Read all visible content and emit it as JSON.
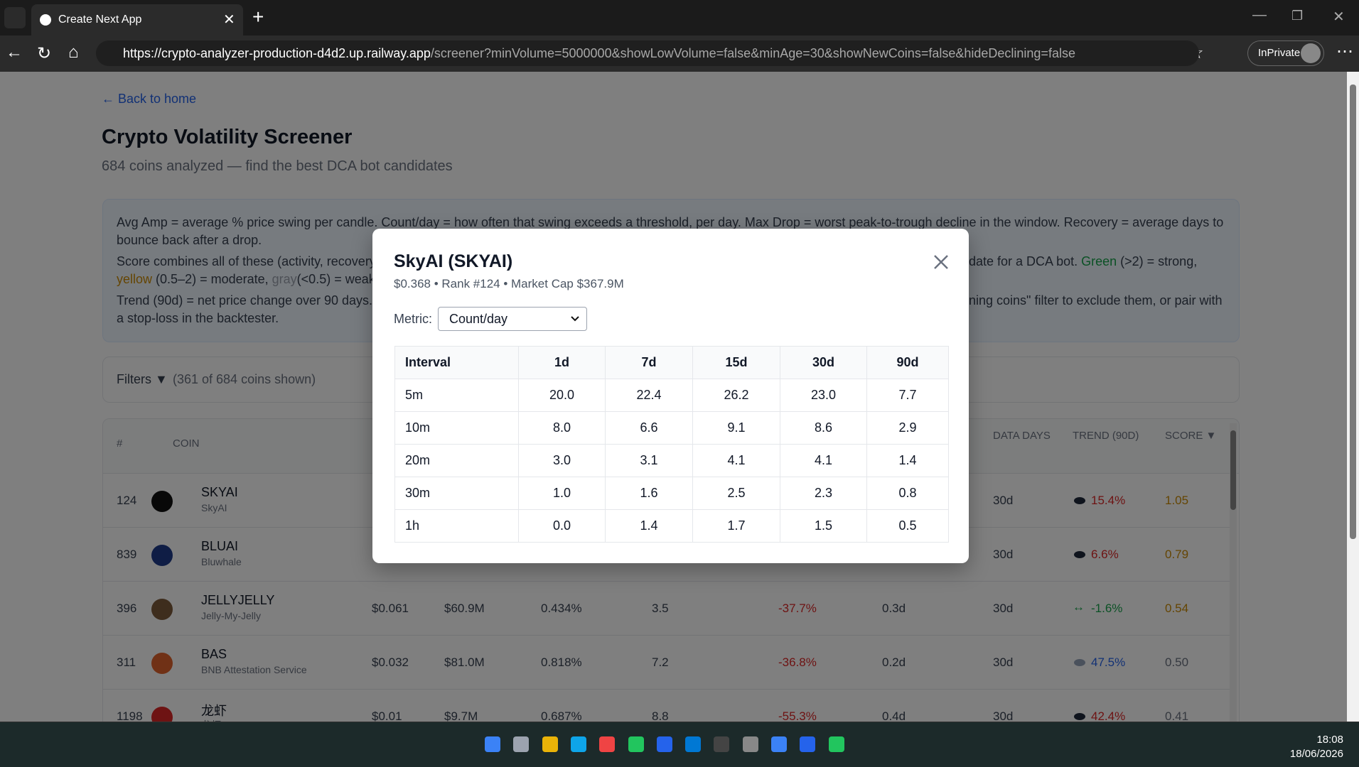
{
  "browser": {
    "tab_title": "Create Next App",
    "url_host": "https://crypto-analyzer-production-d4d2.up.railway.app",
    "url_path": "/screener?minVolume=5000000&showLowVolume=false&minAge=30&showNewCoins=false&hideDeclining=false",
    "profile": "InPrivate"
  },
  "page": {
    "back_link": "← Back to home",
    "title": "Crypto Volatility Screener",
    "subtitle": "684 coins analyzed — find the best DCA bot candidates",
    "info": {
      "p1": "Avg Amp = average % price swing per candle. Count/day = how often that swing exceeds a threshold, per day. Max Drop = worst peak-to-trough decline in the window. Recovery = average days to",
      "p1b": "bounce back after a drop.",
      "p2a": "Score combines all of these (activity, recovery",
      "p2b": "date for a DCA bot.",
      "p2_green": "Green",
      "p2c": "(>2) = strong,",
      "p2_yellow": "yellow",
      "p2d": "(0.5–2) = moderate,",
      "p2_gray": "gray",
      "p2e": "(<0.5) = weak.",
      "p3a": "Trend (90d) = net price change over 90 days.",
      "p3b": "lining coins\" filter to exclude them, or pair with",
      "p3c": "a stop-loss in the backtester."
    },
    "filters": {
      "label": "Filters ▼",
      "count": "(361 of 684 coins shown)"
    },
    "table": {
      "headers": {
        "rank": "#",
        "coin": "COIN",
        "data_days": "DATA DAYS",
        "trend": "TREND (90D)",
        "score": "SCORE ▼"
      },
      "rows": [
        {
          "rank": "124",
          "symbol": "SKYAI",
          "name": "SkyAI",
          "data_days": "30d",
          "trend": "15.4%",
          "trend_color": "#dc2626",
          "score": "1.05",
          "score_color": "#ca8a04"
        },
        {
          "rank": "839",
          "symbol": "BLUAI",
          "name": "Bluwhale",
          "data_days": "30d",
          "trend": "6.6%",
          "trend_color": "#dc2626",
          "score": "0.79",
          "score_color": "#ca8a04"
        },
        {
          "rank": "396",
          "symbol": "JELLYJELLY",
          "name": "Jelly-My-Jelly",
          "price": "$0.061",
          "market_cap": "$60.9M",
          "avg_amp": "0.434%",
          "count_day": "3.5",
          "max_drop": "-37.7%",
          "recovery": "0.3d",
          "data_days": "30d",
          "trend_icon": "↔",
          "trend": "-1.6%",
          "trend_color": "#16a34a",
          "score": "0.54",
          "score_color": "#ca8a04"
        },
        {
          "rank": "311",
          "symbol": "BAS",
          "name": "BNB Attestation Service",
          "price": "$0.032",
          "market_cap": "$81.0M",
          "avg_amp": "0.818%",
          "count_day": "7.2",
          "max_drop": "-36.8%",
          "recovery": "0.2d",
          "data_days": "30d",
          "trend": "47.5%",
          "trend_color": "#2563eb",
          "score": "0.50",
          "score_color": "#6b7280"
        },
        {
          "rank": "1198",
          "symbol": "龙虾",
          "name": "龙虾 (Lobster)",
          "price": "$0.01",
          "market_cap": "$9.7M",
          "avg_amp": "0.687%",
          "count_day": "8.8",
          "max_drop": "-55.3%",
          "recovery": "0.4d",
          "data_days": "30d",
          "trend": "42.4%",
          "trend_color": "#dc2626",
          "score": "0.41",
          "score_color": "#6b7280"
        }
      ]
    }
  },
  "modal": {
    "title": "SkyAI (SKYAI)",
    "subtitle": "$0.368 • Rank #124 • Market Cap $367.9M",
    "metric_label": "Metric:",
    "metric_value": "Count/day",
    "table": {
      "headers": [
        "Interval",
        "1d",
        "7d",
        "15d",
        "30d",
        "90d"
      ],
      "rows": [
        [
          "5m",
          "20.0",
          "22.4",
          "26.2",
          "23.0",
          "7.7"
        ],
        [
          "10m",
          "8.0",
          "6.6",
          "9.1",
          "8.6",
          "2.9"
        ],
        [
          "20m",
          "3.0",
          "3.1",
          "4.1",
          "4.1",
          "1.4"
        ],
        [
          "30m",
          "1.0",
          "1.6",
          "2.5",
          "2.3",
          "0.8"
        ],
        [
          "1h",
          "0.0",
          "1.4",
          "1.7",
          "1.5",
          "0.5"
        ]
      ]
    }
  },
  "taskbar": {
    "time": "18:08",
    "date": "18/06/2026"
  }
}
